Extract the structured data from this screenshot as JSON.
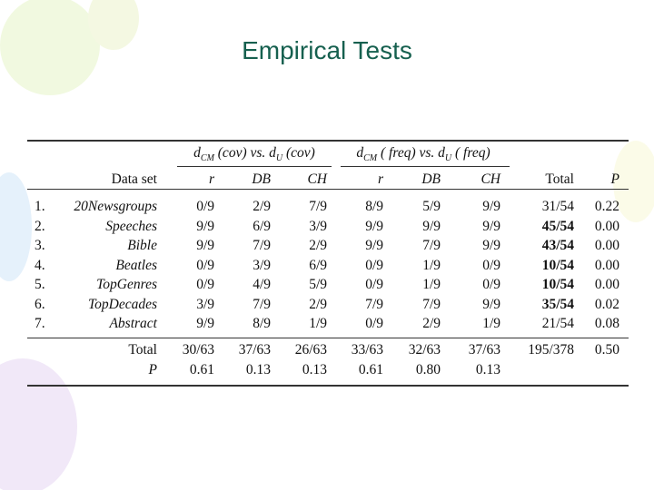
{
  "title": "Empirical Tests",
  "table": {
    "header_groups": [
      {
        "parts": [
          "d",
          "CM",
          " (cov) vs. d",
          "U",
          " (cov)"
        ]
      },
      {
        "parts": [
          "d",
          "CM",
          " ( freq) vs. d",
          "U",
          " ( freq)"
        ]
      }
    ],
    "columns": [
      "Data set",
      "r",
      "DB",
      "CH",
      "r",
      "DB",
      "CH",
      "Total",
      "P"
    ],
    "rows": [
      {
        "index": "1.",
        "name": "20Newsgroups",
        "cells": [
          "0/9",
          "2/9",
          "7/9",
          "8/9",
          "5/9",
          "9/9",
          "31/54",
          "0.22"
        ],
        "bold": false
      },
      {
        "index": "2.",
        "name": "Speeches",
        "cells": [
          "9/9",
          "6/9",
          "3/9",
          "9/9",
          "9/9",
          "9/9",
          "45/54",
          "0.00"
        ],
        "bold": true
      },
      {
        "index": "3.",
        "name": "Bible",
        "cells": [
          "9/9",
          "7/9",
          "2/9",
          "9/9",
          "7/9",
          "9/9",
          "43/54",
          "0.00"
        ],
        "bold": true
      },
      {
        "index": "4.",
        "name": "Beatles",
        "cells": [
          "0/9",
          "3/9",
          "6/9",
          "0/9",
          "1/9",
          "0/9",
          "10/54",
          "0.00"
        ],
        "bold": true
      },
      {
        "index": "5.",
        "name": "TopGenres",
        "cells": [
          "0/9",
          "4/9",
          "5/9",
          "0/9",
          "1/9",
          "0/9",
          "10/54",
          "0.00"
        ],
        "bold": true
      },
      {
        "index": "6.",
        "name": "TopDecades",
        "cells": [
          "3/9",
          "7/9",
          "2/9",
          "7/9",
          "7/9",
          "9/9",
          "35/54",
          "0.02"
        ],
        "bold": true
      },
      {
        "index": "7.",
        "name": "Abstract",
        "cells": [
          "9/9",
          "8/9",
          "1/9",
          "0/9",
          "2/9",
          "1/9",
          "21/54",
          "0.08"
        ],
        "bold": false
      }
    ],
    "footer": [
      {
        "name": "Total",
        "cells": [
          "30/63",
          "37/63",
          "26/63",
          "33/63",
          "32/63",
          "37/63",
          "195/378",
          "0.50"
        ]
      },
      {
        "name": "P",
        "cells": [
          "0.61",
          "0.13",
          "0.13",
          "0.61",
          "0.80",
          "0.13"
        ]
      }
    ]
  }
}
